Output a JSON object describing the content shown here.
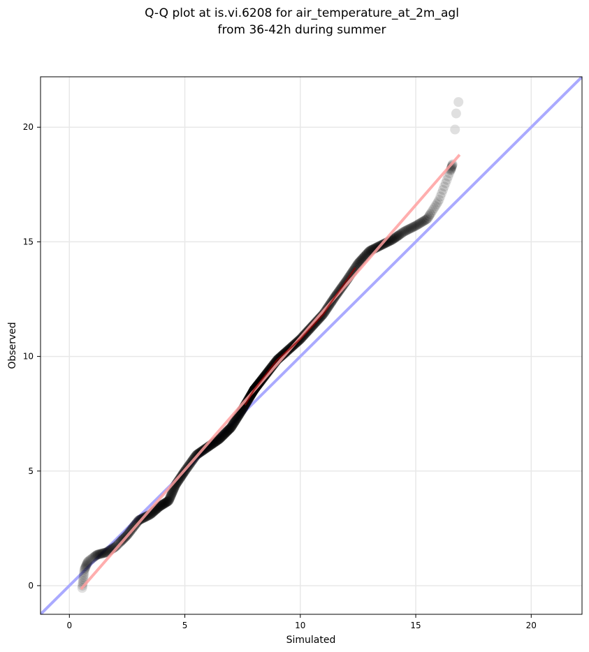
{
  "chart_data": {
    "type": "scatter",
    "title": "Q-Q plot at is.vi.6208 for air_temperature_at_2m_agl",
    "subtitle": "from 36-42h during summer",
    "xlabel": "Simulated",
    "ylabel": "Observed",
    "xlim": [
      -1.25,
      22.2
    ],
    "ylim": [
      -1.25,
      22.2
    ],
    "xticks": [
      0,
      5,
      10,
      15,
      20
    ],
    "yticks": [
      0,
      5,
      10,
      15,
      20
    ],
    "tick_labels": [
      "0",
      "5",
      "10",
      "15",
      "20"
    ],
    "grid": true,
    "quantile_knots": [
      [
        0.55,
        -0.15
      ],
      [
        0.65,
        0.7
      ],
      [
        0.8,
        1.05
      ],
      [
        1.2,
        1.35
      ],
      [
        1.6,
        1.45
      ],
      [
        2.0,
        1.7
      ],
      [
        2.5,
        2.2
      ],
      [
        3.0,
        2.85
      ],
      [
        3.5,
        3.1
      ],
      [
        3.9,
        3.45
      ],
      [
        4.3,
        3.7
      ],
      [
        4.6,
        4.4
      ],
      [
        5.0,
        5.0
      ],
      [
        5.5,
        5.7
      ],
      [
        6.0,
        6.05
      ],
      [
        6.5,
        6.4
      ],
      [
        7.0,
        6.9
      ],
      [
        7.5,
        7.7
      ],
      [
        8.0,
        8.55
      ],
      [
        8.5,
        9.2
      ],
      [
        9.0,
        9.85
      ],
      [
        9.5,
        10.3
      ],
      [
        10.0,
        10.75
      ],
      [
        10.5,
        11.3
      ],
      [
        11.0,
        11.85
      ],
      [
        11.5,
        12.6
      ],
      [
        12.0,
        13.3
      ],
      [
        12.5,
        14.05
      ],
      [
        13.0,
        14.6
      ],
      [
        13.5,
        14.85
      ],
      [
        14.0,
        15.1
      ],
      [
        14.5,
        15.45
      ],
      [
        15.0,
        15.7
      ],
      [
        15.5,
        16.0
      ],
      [
        16.0,
        16.8
      ],
      [
        16.5,
        18.1
      ],
      [
        16.6,
        18.4
      ]
    ],
    "tail_points": [
      [
        16.7,
        19.9
      ],
      [
        16.75,
        20.6
      ],
      [
        16.85,
        21.1
      ]
    ],
    "lines": [
      {
        "kind": "identity",
        "x": [
          -1.25,
          22.2
        ],
        "y": [
          -1.25,
          22.2
        ],
        "color": "#aaaaff"
      },
      {
        "kind": "fit",
        "x": [
          0.5,
          16.9
        ],
        "y": [
          -0.15,
          18.8
        ],
        "color": "#ffa0a0"
      }
    ],
    "colors": {
      "points": "#000000",
      "tail_points": "#cccccc",
      "center_line": "#8b0000",
      "grid": "#e8e8e8"
    }
  }
}
